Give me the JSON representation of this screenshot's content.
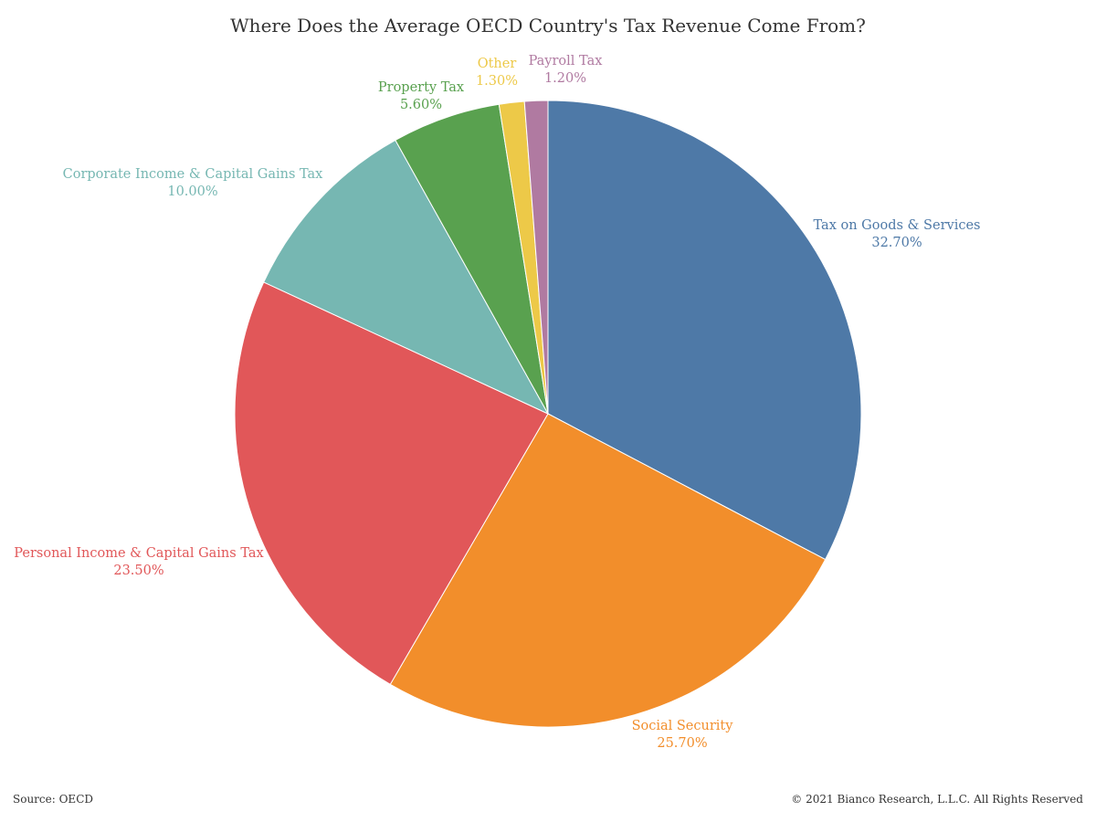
{
  "chart_data": {
    "type": "pie",
    "title": "Where Does the Average OECD Country's Tax Revenue Come From?",
    "start": "top",
    "direction": "clockwise",
    "slices": [
      {
        "label": "Tax on Goods & Services",
        "value": 32.7,
        "value_label": "32.70%",
        "color": "#4e79a7"
      },
      {
        "label": "Social Security",
        "value": 25.7,
        "value_label": "25.70%",
        "color": "#f28e2b"
      },
      {
        "label": "Personal Income & Capital Gains Tax",
        "value": 23.5,
        "value_label": "23.50%",
        "color": "#e15759"
      },
      {
        "label": "Corporate Income & Capital Gains Tax",
        "value": 10.0,
        "value_label": "10.00%",
        "color": "#76b7b2"
      },
      {
        "label": "Property Tax",
        "value": 5.6,
        "value_label": "5.60%",
        "color": "#59a14f"
      },
      {
        "label": "Other",
        "value": 1.3,
        "value_label": "1.30%",
        "color": "#edc948"
      },
      {
        "label": "Payroll Tax",
        "value": 1.2,
        "value_label": "1.20%",
        "color": "#b07aa1"
      }
    ]
  },
  "footer": {
    "source": "Source: OECD",
    "copyright": "© 2021 Bianco Research, L.L.C. All Rights Reserved"
  }
}
